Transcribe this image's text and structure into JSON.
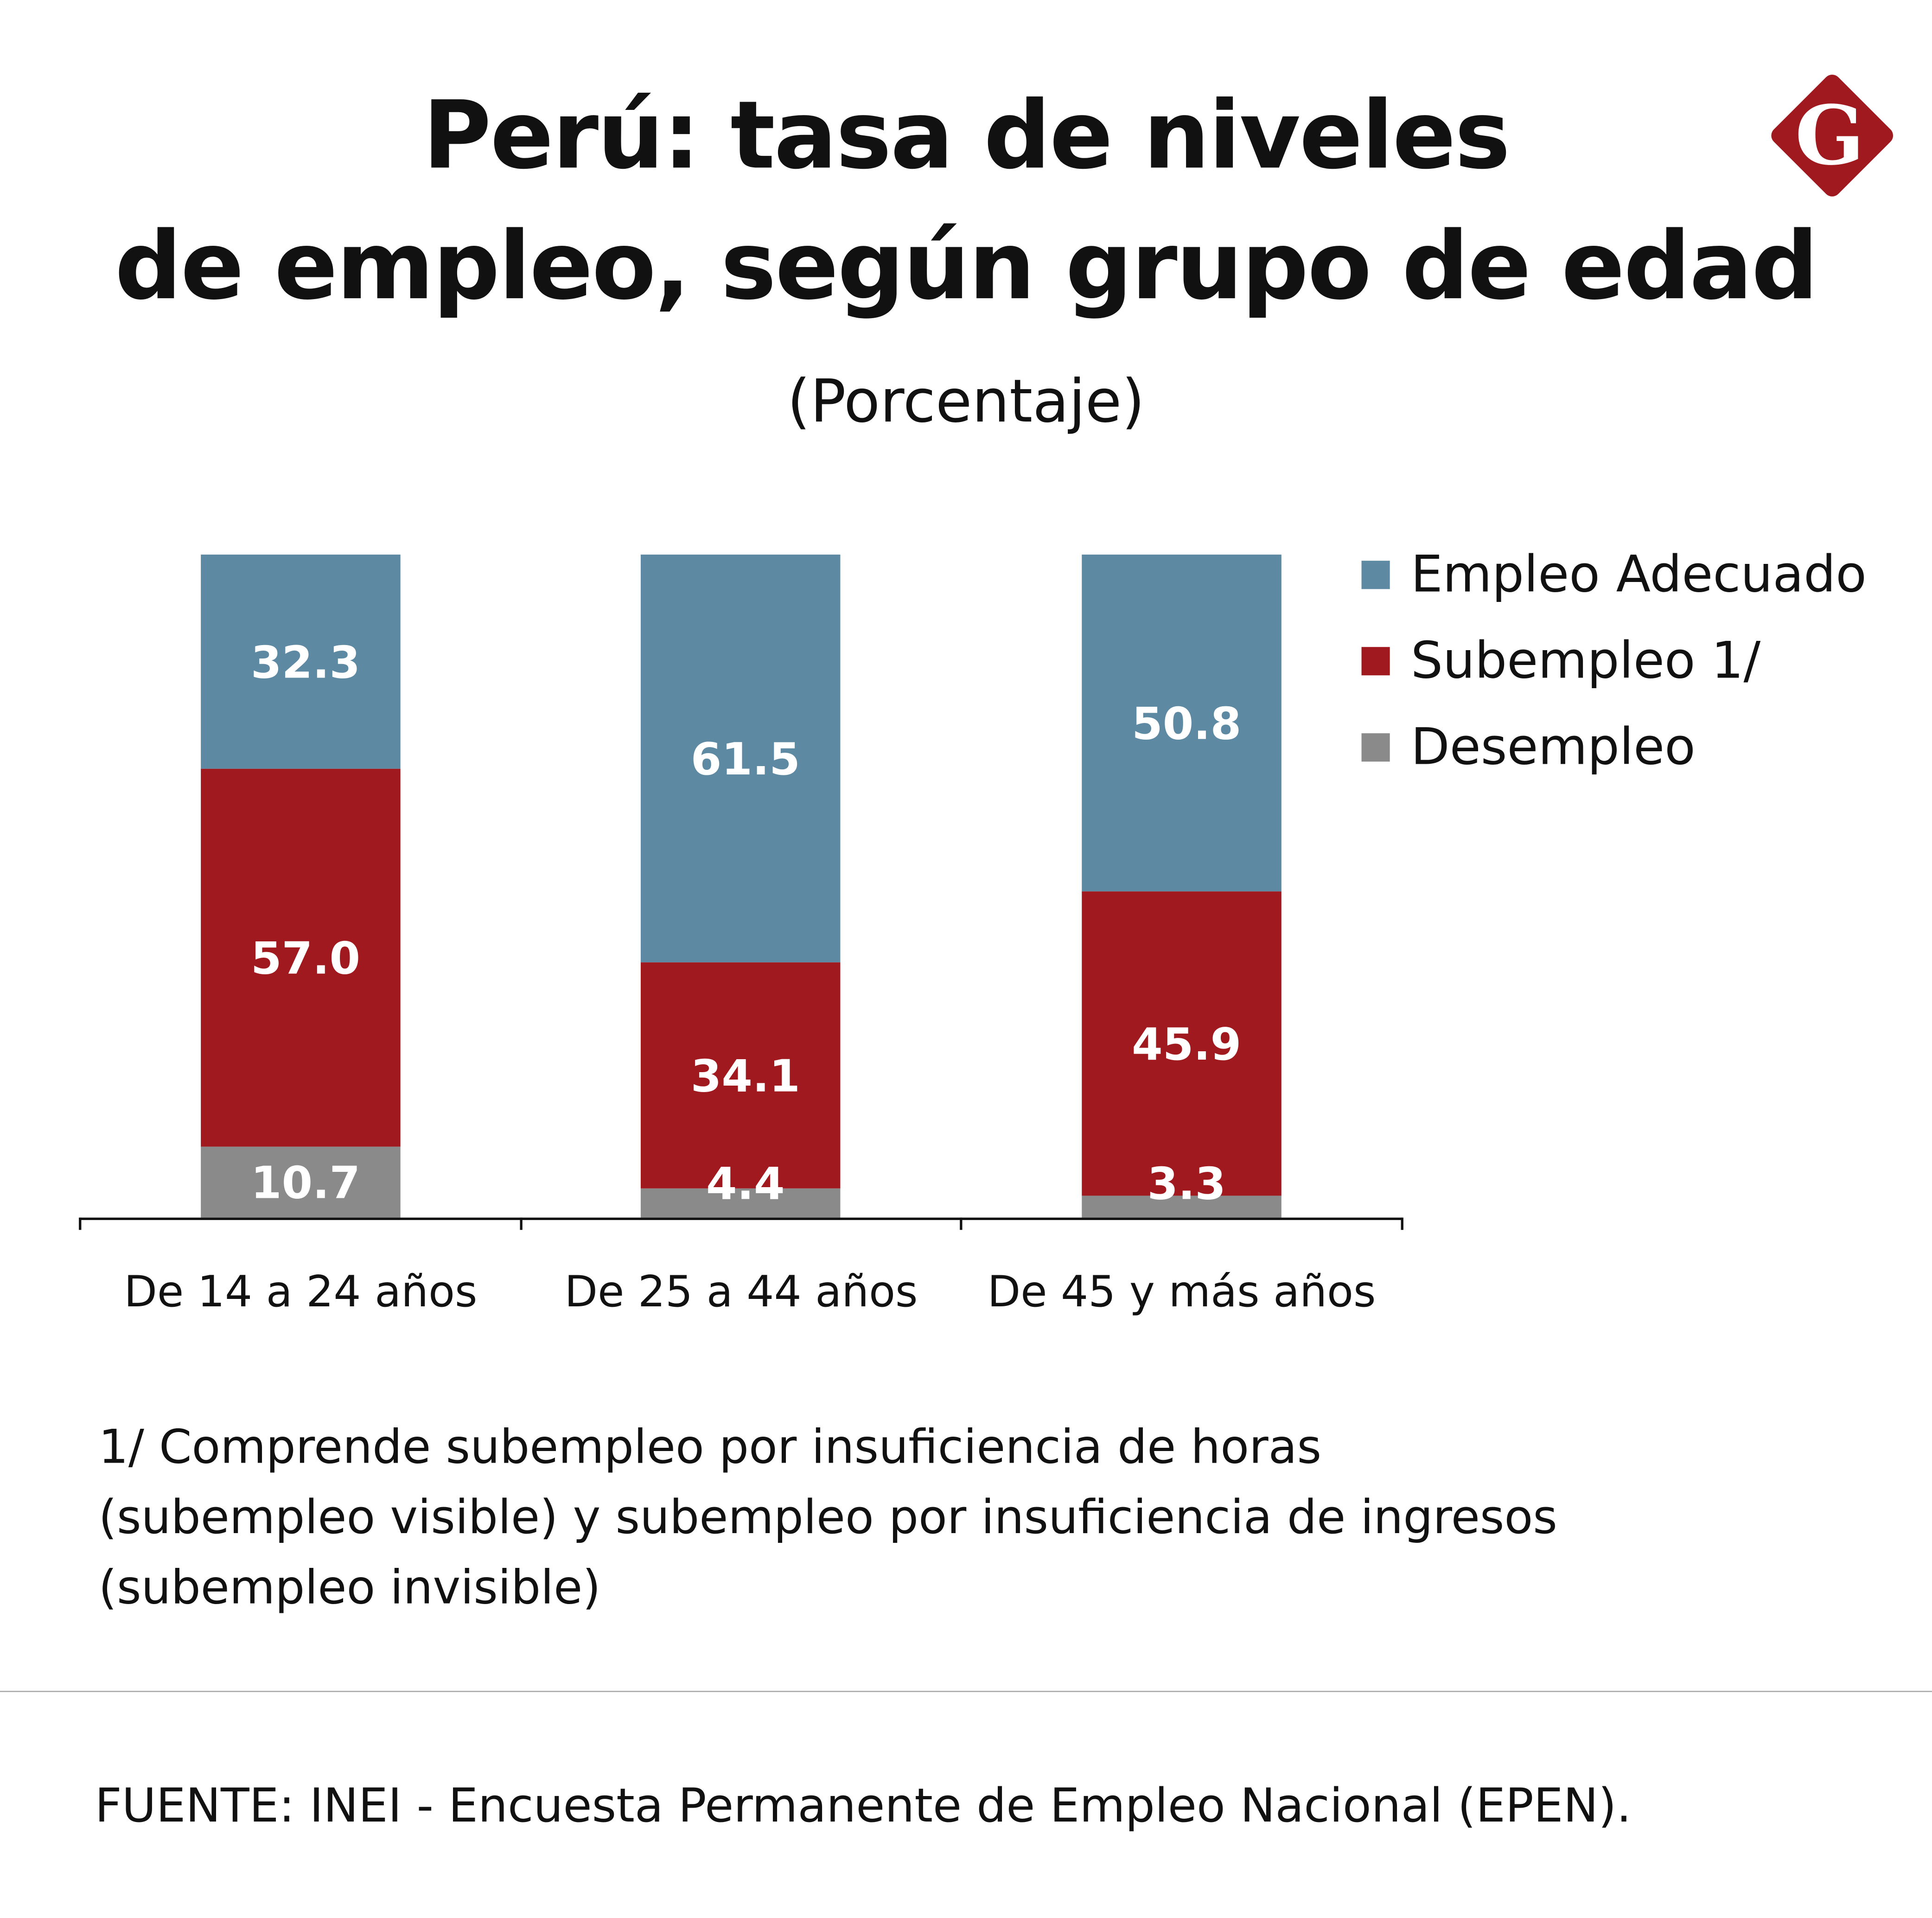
{
  "title_lines": [
    "Perú: tasa de niveles",
    "de empleo, según grupo de edad"
  ],
  "subtitle": "(Porcentaje)",
  "logo_letter": "G",
  "chart_data": {
    "type": "bar",
    "stacked": true,
    "title": "Perú: tasa de niveles de empleo, según grupo de edad",
    "subtitle": "(Porcentaje)",
    "categories": [
      "De 14 a 24 años",
      "De 25 a 44 años",
      "De 45 y más años"
    ],
    "series": [
      {
        "name": "Desempleo",
        "color": "#8a8a8a",
        "values": [
          10.7,
          4.4,
          3.3
        ],
        "labels": [
          "10.7",
          "4.4",
          "3.3"
        ]
      },
      {
        "name": "Subempleo 1/",
        "color": "#a0191e",
        "values": [
          57.0,
          34.1,
          45.9
        ],
        "labels": [
          "57.0",
          "34.1",
          "45.9"
        ]
      },
      {
        "name": "Empleo Adecuado",
        "color": "#5e89a3",
        "values": [
          32.3,
          61.5,
          50.8
        ],
        "labels": [
          "32.3",
          "61.5",
          "50.8"
        ]
      }
    ],
    "ylim": [
      0,
      100
    ],
    "grid": false,
    "legend_position": "right",
    "legend_order": [
      "Empleo Adecuado",
      "Subempleo 1/",
      "Desempleo"
    ]
  },
  "footnote_lines": [
    "1/ Comprende subempleo por insuficiencia de horas",
    "(subempleo visible) y subempleo por insuficiencia de ingresos",
    "(subempleo invisible)"
  ],
  "source": "FUENTE: INEI - Encuesta Permanente de Empleo Nacional (EPEN).",
  "colors": {
    "logo": "#a0191e"
  }
}
